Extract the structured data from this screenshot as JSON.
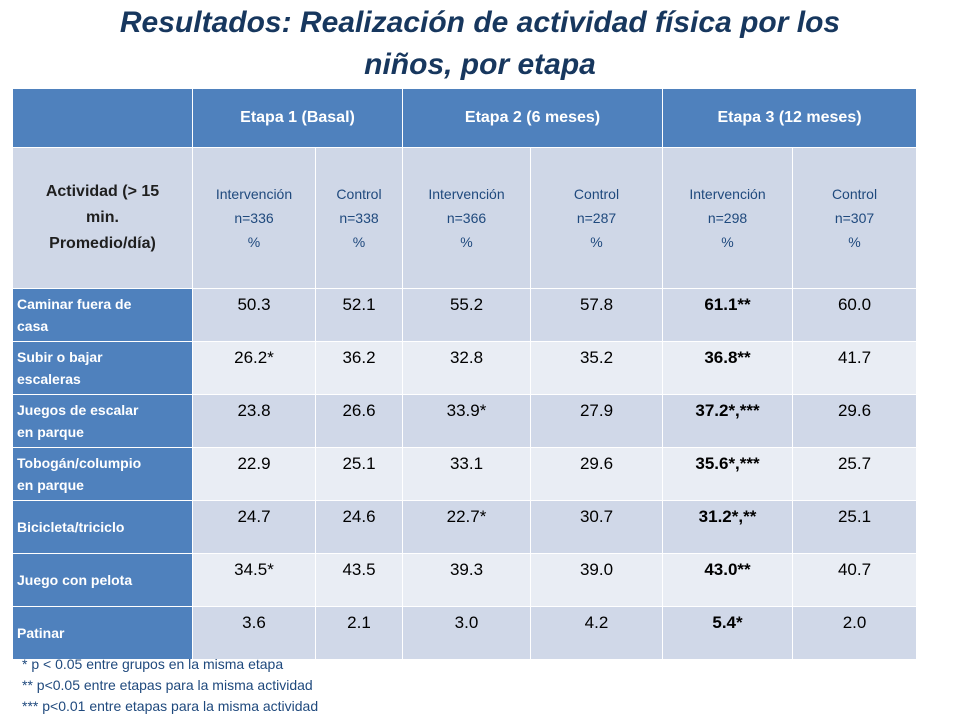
{
  "title_line1": "Resultados: Realización de actividad física por los",
  "title_line2": "niños, por etapa",
  "stages": [
    "Etapa 1 (Basal)",
    "Etapa 2 (6 meses)",
    "Etapa 3 (12 meses)"
  ],
  "activity_header": [
    "Actividad (> 15",
    "min.",
    "Promedio/día)"
  ],
  "groups": [
    {
      "name": "Intervención",
      "n": "n=336",
      "unit": "%"
    },
    {
      "name": "Control",
      "n": "n=338",
      "unit": "%"
    },
    {
      "name": "Intervención",
      "n": "n=366",
      "unit": "%"
    },
    {
      "name": "Control",
      "n": "n=287",
      "unit": "%"
    },
    {
      "name": "Intervención",
      "n": "n=298",
      "unit": "%"
    },
    {
      "name": "Control",
      "n": "n=307",
      "unit": "%"
    }
  ],
  "rows": [
    {
      "label": [
        "Caminar fuera de",
        "casa"
      ],
      "values": [
        "50.3",
        "52.1",
        "55.2",
        "57.8",
        "61.1**",
        "60.0"
      ]
    },
    {
      "label": [
        "Subir o bajar",
        "escaleras"
      ],
      "values": [
        "26.2*",
        "36.2",
        "32.8",
        "35.2",
        "36.8**",
        "41.7"
      ]
    },
    {
      "label": [
        "Juegos de escalar",
        "en parque"
      ],
      "values": [
        "23.8",
        "26.6",
        "33.9*",
        "27.9",
        "37.2*,***",
        "29.6"
      ]
    },
    {
      "label": [
        "Tobogán/columpio",
        "en parque"
      ],
      "values": [
        "22.9",
        "25.1",
        "33.1",
        "29.6",
        "35.6*,***",
        "25.7"
      ]
    },
    {
      "label": [
        "Bicicleta/triciclo"
      ],
      "values": [
        "24.7",
        "24.6",
        "22.7*",
        "30.7",
        "31.2*,**",
        "25.1"
      ]
    },
    {
      "label": [
        "Juego con pelota"
      ],
      "values": [
        "34.5*",
        "43.5",
        "39.3",
        "39.0",
        "43.0**",
        "40.7"
      ]
    },
    {
      "label": [
        "Patinar"
      ],
      "values": [
        "3.6",
        "2.1",
        "3.0",
        "4.2",
        "5.4*",
        "2.0"
      ]
    }
  ],
  "notes": [
    "* p < 0.05 entre grupos en la misma etapa",
    "** p<0.05 entre etapas para la misma actividad",
    "*** p<0.01 entre etapas para la misma actividad"
  ]
}
